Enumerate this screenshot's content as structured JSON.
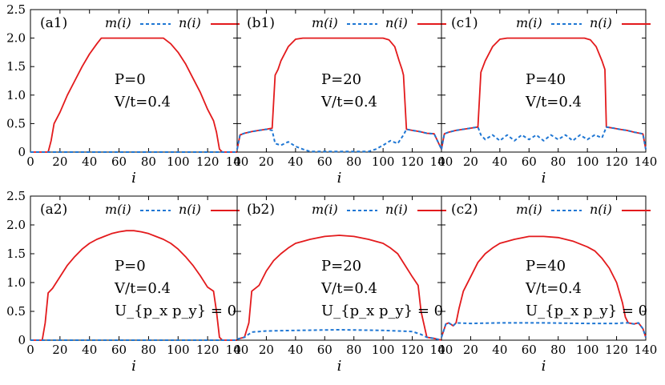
{
  "chart_data": {
    "type": "line",
    "layout": "2x3 grid of panels sharing the y axis; x axis 0 to 140 in each panel",
    "xlabel": "i",
    "xlim": [
      0,
      140
    ],
    "xticks": [
      "0",
      "20",
      "40",
      "60",
      "80",
      "100",
      "120",
      "140"
    ],
    "ylim": [
      0,
      2.5
    ],
    "yticks": [
      "0",
      "0.5",
      "1.0",
      "1.5",
      "2.0",
      "2.5"
    ],
    "legend": {
      "placement": "top-right",
      "m_label": "m(i)",
      "n_label": "n(i)"
    },
    "colors": {
      "m": "#1f77d4",
      "n": "#e31a1c"
    },
    "panels": [
      {
        "id": "a1",
        "label": "(a1)",
        "annotations": [
          "P=0",
          "V/t=0.4"
        ],
        "n_points": [
          [
            0,
            0
          ],
          [
            12,
            0
          ],
          [
            14,
            0.2
          ],
          [
            16,
            0.5
          ],
          [
            20,
            0.7
          ],
          [
            25,
            1.0
          ],
          [
            30,
            1.25
          ],
          [
            35,
            1.5
          ],
          [
            40,
            1.72
          ],
          [
            45,
            1.9
          ],
          [
            48,
            2.0
          ],
          [
            90,
            2.0
          ],
          [
            95,
            1.9
          ],
          [
            100,
            1.75
          ],
          [
            105,
            1.55
          ],
          [
            110,
            1.3
          ],
          [
            115,
            1.05
          ],
          [
            120,
            0.75
          ],
          [
            124,
            0.55
          ],
          [
            126,
            0.35
          ],
          [
            128,
            0.05
          ],
          [
            130,
            0
          ],
          [
            140,
            0
          ]
        ],
        "m_points": [
          [
            0,
            0
          ],
          [
            140,
            0
          ]
        ]
      },
      {
        "id": "b1",
        "label": "(b1)",
        "annotations": [
          "P=20",
          "V/t=0.4"
        ],
        "n_points": [
          [
            0,
            0.05
          ],
          [
            2,
            0.3
          ],
          [
            5,
            0.33
          ],
          [
            10,
            0.36
          ],
          [
            15,
            0.38
          ],
          [
            20,
            0.4
          ],
          [
            24,
            0.42
          ],
          [
            26,
            1.35
          ],
          [
            28,
            1.45
          ],
          [
            30,
            1.6
          ],
          [
            35,
            1.85
          ],
          [
            40,
            1.98
          ],
          [
            45,
            2.0
          ],
          [
            100,
            2.0
          ],
          [
            104,
            1.97
          ],
          [
            108,
            1.85
          ],
          [
            111,
            1.6
          ],
          [
            113,
            1.45
          ],
          [
            114,
            1.35
          ],
          [
            116,
            0.4
          ],
          [
            120,
            0.38
          ],
          [
            125,
            0.36
          ],
          [
            130,
            0.33
          ],
          [
            135,
            0.32
          ],
          [
            140,
            0.05
          ]
        ],
        "m_points": [
          [
            0,
            0.05
          ],
          [
            2,
            0.3
          ],
          [
            5,
            0.33
          ],
          [
            10,
            0.36
          ],
          [
            15,
            0.38
          ],
          [
            20,
            0.4
          ],
          [
            24,
            0.38
          ],
          [
            26,
            0.15
          ],
          [
            30,
            0.12
          ],
          [
            35,
            0.18
          ],
          [
            40,
            0.1
          ],
          [
            45,
            0.05
          ],
          [
            50,
            0.01
          ],
          [
            90,
            0.01
          ],
          [
            95,
            0.05
          ],
          [
            100,
            0.12
          ],
          [
            105,
            0.2
          ],
          [
            110,
            0.15
          ],
          [
            114,
            0.3
          ],
          [
            116,
            0.4
          ],
          [
            120,
            0.38
          ],
          [
            125,
            0.36
          ],
          [
            130,
            0.33
          ],
          [
            135,
            0.32
          ],
          [
            140,
            0.05
          ]
        ]
      },
      {
        "id": "c1",
        "label": "(c1)",
        "annotations": [
          "P=40",
          "V/t=0.4"
        ],
        "n_points": [
          [
            0,
            0.05
          ],
          [
            2,
            0.32
          ],
          [
            5,
            0.35
          ],
          [
            10,
            0.38
          ],
          [
            15,
            0.4
          ],
          [
            20,
            0.42
          ],
          [
            25,
            0.44
          ],
          [
            27,
            1.4
          ],
          [
            30,
            1.6
          ],
          [
            35,
            1.85
          ],
          [
            40,
            1.98
          ],
          [
            45,
            2.0
          ],
          [
            98,
            2.0
          ],
          [
            102,
            1.97
          ],
          [
            106,
            1.85
          ],
          [
            110,
            1.6
          ],
          [
            112,
            1.45
          ],
          [
            113,
            0.44
          ],
          [
            118,
            0.42
          ],
          [
            122,
            0.4
          ],
          [
            127,
            0.38
          ],
          [
            132,
            0.35
          ],
          [
            138,
            0.32
          ],
          [
            140,
            0.05
          ]
        ],
        "m_points": [
          [
            0,
            0.05
          ],
          [
            2,
            0.32
          ],
          [
            5,
            0.35
          ],
          [
            10,
            0.38
          ],
          [
            15,
            0.4
          ],
          [
            20,
            0.42
          ],
          [
            25,
            0.44
          ],
          [
            27,
            0.3
          ],
          [
            30,
            0.22
          ],
          [
            35,
            0.3
          ],
          [
            40,
            0.2
          ],
          [
            45,
            0.3
          ],
          [
            50,
            0.2
          ],
          [
            55,
            0.3
          ],
          [
            60,
            0.22
          ],
          [
            65,
            0.3
          ],
          [
            70,
            0.2
          ],
          [
            75,
            0.3
          ],
          [
            80,
            0.22
          ],
          [
            85,
            0.3
          ],
          [
            90,
            0.2
          ],
          [
            95,
            0.3
          ],
          [
            100,
            0.22
          ],
          [
            105,
            0.3
          ],
          [
            110,
            0.25
          ],
          [
            113,
            0.44
          ],
          [
            118,
            0.42
          ],
          [
            122,
            0.4
          ],
          [
            127,
            0.38
          ],
          [
            132,
            0.35
          ],
          [
            138,
            0.32
          ],
          [
            140,
            0.05
          ]
        ]
      },
      {
        "id": "a2",
        "label": "(a2)",
        "annotations": [
          "P=0",
          "V/t=0.4",
          "U_{p_x p_y} = 0"
        ],
        "n_points": [
          [
            0,
            0
          ],
          [
            8,
            0
          ],
          [
            10,
            0.3
          ],
          [
            12,
            0.82
          ],
          [
            15,
            0.9
          ],
          [
            20,
            1.1
          ],
          [
            25,
            1.3
          ],
          [
            30,
            1.45
          ],
          [
            35,
            1.58
          ],
          [
            40,
            1.68
          ],
          [
            45,
            1.75
          ],
          [
            50,
            1.8
          ],
          [
            55,
            1.85
          ],
          [
            60,
            1.88
          ],
          [
            65,
            1.9
          ],
          [
            70,
            1.9
          ],
          [
            75,
            1.88
          ],
          [
            80,
            1.85
          ],
          [
            85,
            1.8
          ],
          [
            90,
            1.75
          ],
          [
            95,
            1.68
          ],
          [
            100,
            1.58
          ],
          [
            105,
            1.45
          ],
          [
            110,
            1.3
          ],
          [
            115,
            1.12
          ],
          [
            120,
            0.92
          ],
          [
            124,
            0.85
          ],
          [
            126,
            0.5
          ],
          [
            128,
            0.05
          ],
          [
            130,
            0
          ],
          [
            140,
            0
          ]
        ],
        "m_points": [
          [
            0,
            0
          ],
          [
            140,
            0
          ]
        ]
      },
      {
        "id": "b2",
        "label": "(b2)",
        "annotations": [
          "P=20",
          "V/t=0.4",
          "U_{p_x p_y} = 0"
        ],
        "n_points": [
          [
            0,
            0.02
          ],
          [
            5,
            0.05
          ],
          [
            8,
            0.3
          ],
          [
            10,
            0.85
          ],
          [
            15,
            0.95
          ],
          [
            20,
            1.2
          ],
          [
            25,
            1.38
          ],
          [
            30,
            1.5
          ],
          [
            35,
            1.6
          ],
          [
            40,
            1.68
          ],
          [
            50,
            1.75
          ],
          [
            60,
            1.8
          ],
          [
            70,
            1.82
          ],
          [
            80,
            1.8
          ],
          [
            90,
            1.75
          ],
          [
            100,
            1.68
          ],
          [
            105,
            1.6
          ],
          [
            110,
            1.5
          ],
          [
            115,
            1.3
          ],
          [
            120,
            1.1
          ],
          [
            124,
            0.95
          ],
          [
            126,
            0.5
          ],
          [
            130,
            0.05
          ],
          [
            135,
            0.03
          ],
          [
            140,
            0
          ]
        ],
        "m_points": [
          [
            0,
            0.02
          ],
          [
            5,
            0.05
          ],
          [
            10,
            0.14
          ],
          [
            15,
            0.15
          ],
          [
            20,
            0.16
          ],
          [
            40,
            0.17
          ],
          [
            70,
            0.18
          ],
          [
            100,
            0.17
          ],
          [
            120,
            0.15
          ],
          [
            126,
            0.1
          ],
          [
            130,
            0.05
          ],
          [
            135,
            0.03
          ],
          [
            140,
            0
          ]
        ]
      },
      {
        "id": "c2",
        "label": "(c2)",
        "annotations": [
          "P=40",
          "V/t=0.4",
          "U_{p_x p_y} = 0"
        ],
        "n_points": [
          [
            0,
            0.05
          ],
          [
            3,
            0.28
          ],
          [
            5,
            0.3
          ],
          [
            8,
            0.25
          ],
          [
            10,
            0.3
          ],
          [
            12,
            0.55
          ],
          [
            15,
            0.85
          ],
          [
            20,
            1.1
          ],
          [
            25,
            1.35
          ],
          [
            30,
            1.5
          ],
          [
            35,
            1.6
          ],
          [
            40,
            1.68
          ],
          [
            50,
            1.75
          ],
          [
            60,
            1.8
          ],
          [
            70,
            1.8
          ],
          [
            80,
            1.78
          ],
          [
            90,
            1.72
          ],
          [
            100,
            1.62
          ],
          [
            105,
            1.55
          ],
          [
            110,
            1.42
          ],
          [
            115,
            1.25
          ],
          [
            120,
            1.0
          ],
          [
            124,
            0.65
          ],
          [
            126,
            0.4
          ],
          [
            128,
            0.3
          ],
          [
            132,
            0.28
          ],
          [
            135,
            0.3
          ],
          [
            138,
            0.2
          ],
          [
            140,
            0.05
          ]
        ],
        "m_points": [
          [
            0,
            0.05
          ],
          [
            3,
            0.28
          ],
          [
            5,
            0.3
          ],
          [
            8,
            0.25
          ],
          [
            10,
            0.3
          ],
          [
            20,
            0.29
          ],
          [
            40,
            0.3
          ],
          [
            70,
            0.3
          ],
          [
            100,
            0.29
          ],
          [
            120,
            0.29
          ],
          [
            126,
            0.3
          ],
          [
            128,
            0.3
          ],
          [
            132,
            0.28
          ],
          [
            135,
            0.3
          ],
          [
            138,
            0.2
          ],
          [
            140,
            0.05
          ]
        ]
      }
    ]
  }
}
